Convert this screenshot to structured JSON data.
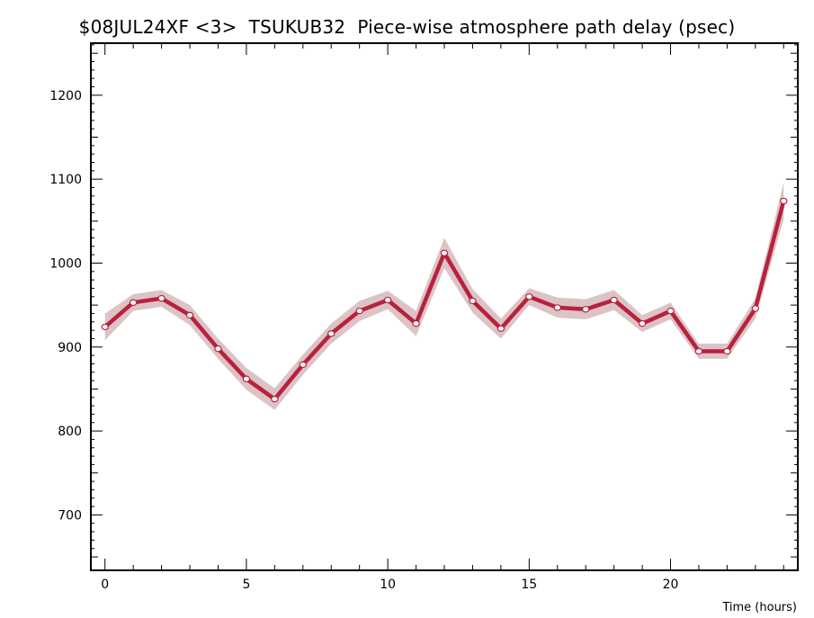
{
  "chart_data": {
    "type": "line",
    "title": "$08JUL24XF <3>  TSUKUB32  Piece-wise atmosphere path delay (psec)",
    "xlabel": "Time (hours)",
    "ylabel": "",
    "xlim": [
      -0.5,
      24.5
    ],
    "ylim": [
      634,
      1262
    ],
    "xticks": [
      0,
      5,
      10,
      15,
      20
    ],
    "yticks": [
      700,
      800,
      900,
      1000,
      1100,
      1200
    ],
    "grid": false,
    "colors": {
      "line": "#b8213c",
      "band": "#dcc3c6",
      "point_fill": "#ffffff",
      "axis": "#000000"
    },
    "series": [
      {
        "x": [
          0,
          1,
          2,
          3,
          4,
          5,
          6,
          7,
          8,
          9,
          10,
          11,
          12,
          13,
          14,
          15,
          16,
          17,
          18,
          19,
          20,
          21,
          22,
          23,
          24
        ],
        "values": [
          924,
          953,
          958,
          938,
          898,
          862,
          838,
          879,
          916,
          943,
          956,
          928,
          1012,
          955,
          922,
          960,
          947,
          945,
          956,
          928,
          943,
          895,
          895,
          946,
          1074
        ],
        "error": [
          16,
          10,
          10,
          12,
          12,
          13,
          13,
          12,
          12,
          12,
          11,
          15,
          18,
          14,
          12,
          10,
          12,
          12,
          12,
          10,
          10,
          9,
          9,
          12,
          22
        ]
      }
    ]
  }
}
